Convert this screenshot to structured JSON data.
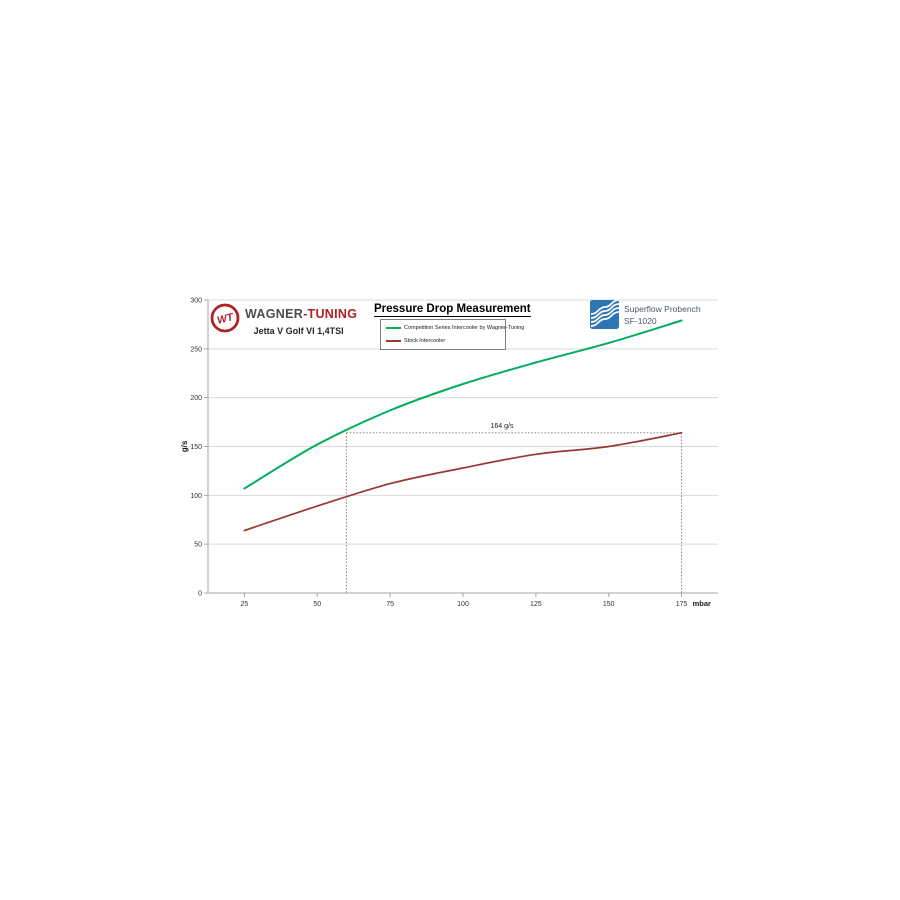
{
  "page": {
    "background": "#FFFFFF"
  },
  "branding": {
    "wagner": {
      "monogram": "WT",
      "name_gray": "WAGNER",
      "name_red": "-TUNING",
      "subtitle": "Jetta V Golf VI 1,4TSI",
      "red": "#B21F24",
      "gray": "#4D4D4D"
    },
    "superflow": {
      "line1": "Superflow Probench",
      "line2": "SF-1020",
      "blue": "#2E75B6",
      "text_color": "#4C5A68"
    }
  },
  "chart_data": {
    "type": "line",
    "title": "Pressure Drop Measurement",
    "xlabel": "mbar",
    "ylabel": "g/s",
    "x": [
      25,
      50,
      75,
      100,
      125,
      150,
      175
    ],
    "xlim": [
      12.5,
      187.5
    ],
    "ylim": [
      0,
      300
    ],
    "yticks": [
      0,
      50,
      100,
      150,
      200,
      250,
      300
    ],
    "grid": "horizontal",
    "legend_position": "top-center",
    "colors": {
      "gridline": "#D9D9D9",
      "axis": "#A6A6A6",
      "tick_text": "#333333",
      "dotted": "#7F7F7F"
    },
    "series": [
      {
        "name": "Competition Series Intercooler by Wagner-Tuning",
        "color": "#00AE5D",
        "values": [
          107,
          152,
          187,
          214,
          236,
          256,
          279
        ]
      },
      {
        "name": "Stock Intercooler",
        "color": "#9A3734",
        "values": [
          64,
          89,
          112,
          128,
          142,
          150,
          164
        ]
      }
    ],
    "annotation": {
      "label": "164 g/s",
      "value": 164,
      "x_from": 60,
      "x_to": 175
    }
  }
}
